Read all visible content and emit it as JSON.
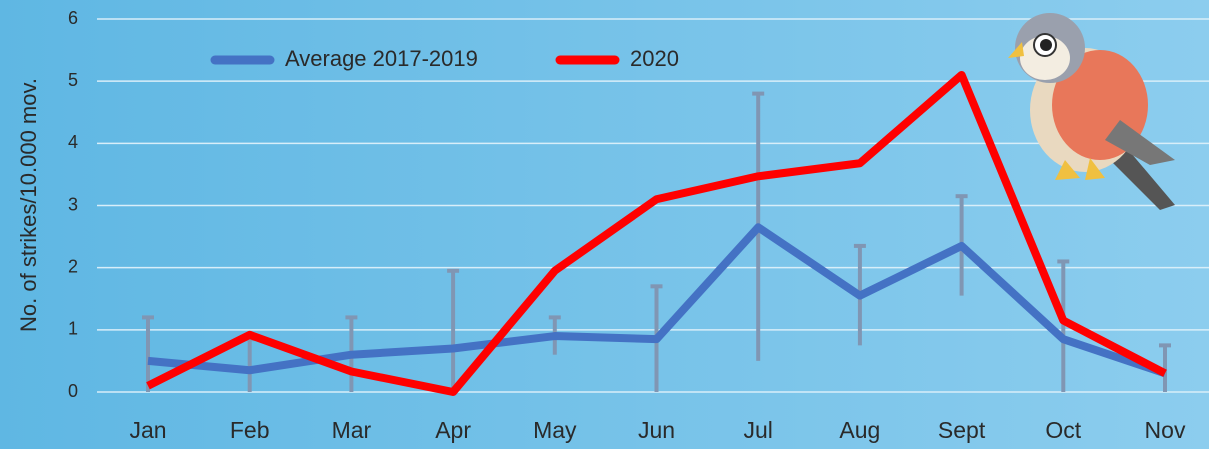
{
  "chart_data": {
    "type": "line",
    "y_label": "No. of strikes/10.000 mov.",
    "categories": [
      "Jan",
      "Feb",
      "Mar",
      "Apr",
      "May",
      "Jun",
      "Jul",
      "Aug",
      "Sept",
      "Oct",
      "Nov"
    ],
    "series": [
      {
        "name": "Average 2017-2019",
        "color": "#4472c4",
        "values": [
          0.5,
          0.35,
          0.6,
          0.7,
          0.9,
          0.85,
          2.65,
          1.55,
          2.35,
          0.85,
          0.3
        ],
        "error": [
          0.7,
          0.5,
          0.6,
          1.25,
          0.3,
          0.85,
          2.15,
          0.8,
          0.8,
          1.25,
          0.45
        ]
      },
      {
        "name": "2020",
        "color": "#ff0000",
        "values": [
          0.1,
          0.92,
          0.33,
          0.0,
          1.95,
          3.1,
          3.47,
          3.68,
          5.1,
          1.15,
          0.3
        ]
      }
    ],
    "ylim": [
      0,
      6
    ],
    "yticks": [
      0,
      1,
      2,
      3,
      4,
      5,
      6
    ],
    "grid": true
  }
}
